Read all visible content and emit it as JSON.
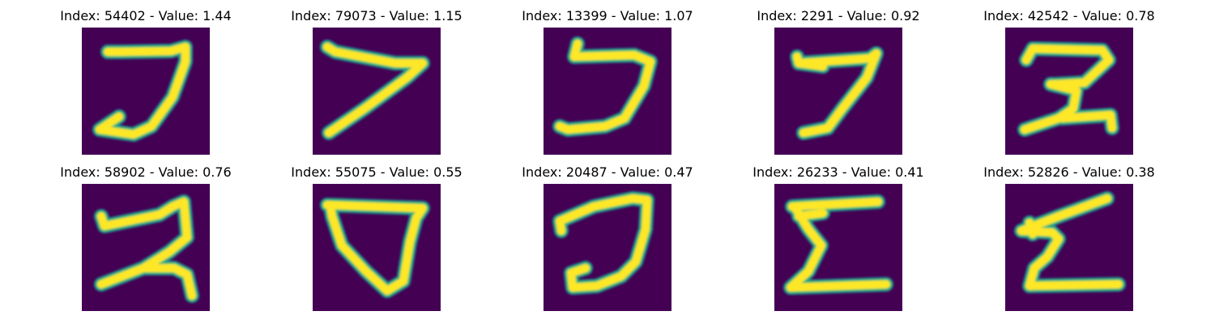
{
  "colormap": {
    "background": "#440154",
    "edge_mid": "#21918c",
    "edge_outer": "#35b779",
    "stroke_core": "#fde725"
  },
  "panels": [
    {
      "title": "Index: 54402 - Value: 1.44"
    },
    {
      "title": "Index: 79073 - Value: 1.15"
    },
    {
      "title": "Index: 13399 - Value: 1.07"
    },
    {
      "title": "Index: 2291 - Value: 0.92"
    },
    {
      "title": "Index: 42542 - Value: 0.78"
    },
    {
      "title": "Index: 58902 - Value: 0.76"
    },
    {
      "title": "Index: 55075 - Value: 0.55"
    },
    {
      "title": "Index: 20487 - Value: 0.47"
    },
    {
      "title": "Index: 26233 - Value: 0.41"
    },
    {
      "title": "Index: 52826 - Value: 0.38"
    }
  ]
}
